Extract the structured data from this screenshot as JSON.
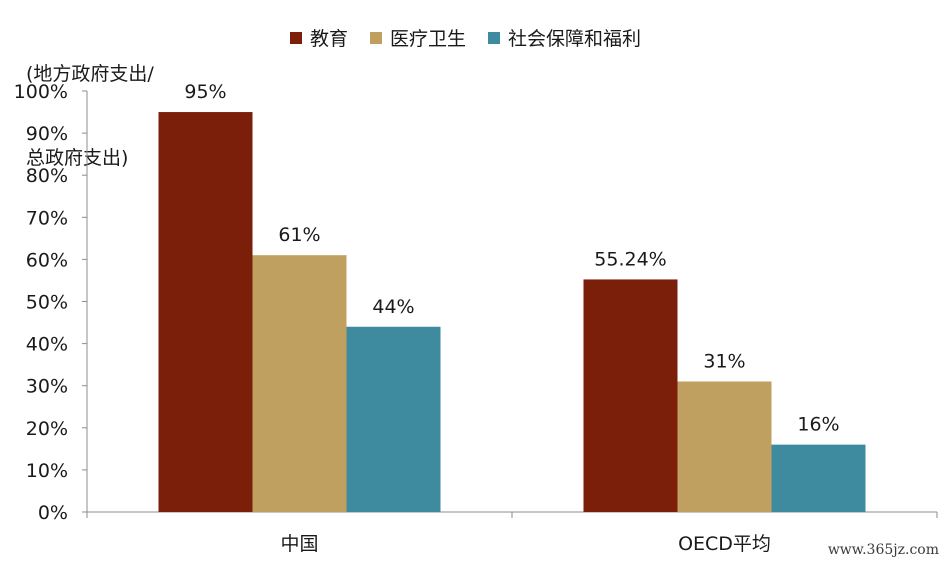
{
  "chart_data": {
    "type": "bar",
    "ylabel_line1": "(地方政府支出/",
    "ylabel_line2": "总政府支出)",
    "categories": [
      "中国",
      "OECD平均"
    ],
    "series": [
      {
        "name": "教育",
        "color": "#7B1E0A",
        "values": [
          95,
          55.24
        ],
        "labels": [
          "95%",
          "55.24%"
        ]
      },
      {
        "name": "医疗卫生",
        "color": "#C0A060",
        "values": [
          61,
          31
        ],
        "labels": [
          "61%",
          "31%"
        ]
      },
      {
        "name": "社会保障和福利",
        "color": "#3E8A9E",
        "values": [
          44,
          16
        ],
        "labels": [
          "44%",
          "16%"
        ]
      }
    ],
    "ylim": [
      0,
      100
    ],
    "yticks": [
      "0%",
      "10%",
      "20%",
      "30%",
      "40%",
      "50%",
      "60%",
      "70%",
      "80%",
      "90%",
      "100%"
    ],
    "grid": false,
    "legend_position": "top"
  },
  "watermark": "www.365jz.com"
}
